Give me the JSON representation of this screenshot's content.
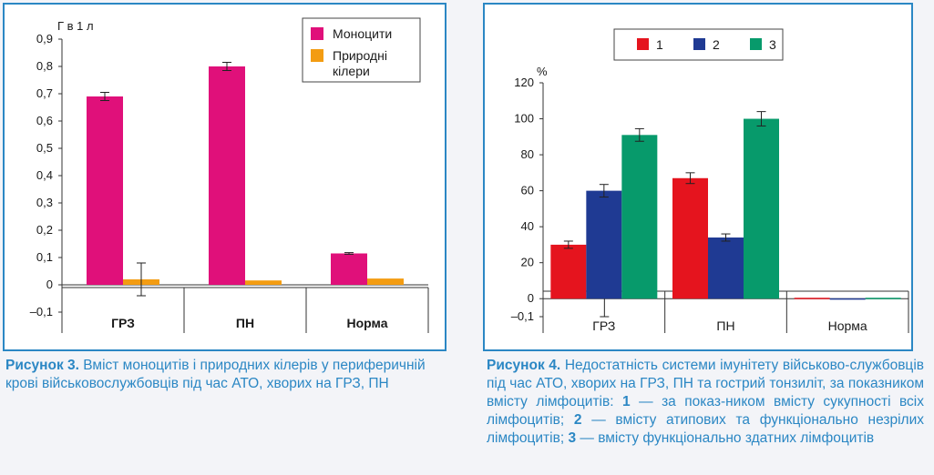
{
  "chart_data": [
    {
      "type": "bar",
      "ylabel": "Г в 1 л",
      "categories": [
        "ГРЗ",
        "ПН",
        "Норма"
      ],
      "series": [
        {
          "name": "Моноцити",
          "values": [
            0.69,
            0.8,
            0.115
          ],
          "errors": [
            0.015,
            0.015,
            0.003
          ]
        },
        {
          "name": "Природні кілери",
          "values": [
            0.02,
            0.016,
            0.023
          ],
          "errors": [
            0.06,
            0,
            0
          ]
        }
      ],
      "colors": [
        "#e0107a",
        "#f39c12"
      ],
      "ylim": [
        -0.1,
        0.9
      ],
      "yticks": [
        "0,9",
        "0,8",
        "0,7",
        "0,6",
        "0,5",
        "0,4",
        "0,3",
        "0,2",
        "0,1",
        "0",
        "–0,1"
      ],
      "legend": "top-right",
      "grid": false
    },
    {
      "type": "bar",
      "ylabel": "%",
      "categories": [
        "ГРЗ",
        "ПН",
        "Норма"
      ],
      "series": [
        {
          "name": "1",
          "values": [
            30,
            67,
            0.5
          ],
          "errors": [
            2,
            3,
            0
          ]
        },
        {
          "name": "2",
          "values": [
            60,
            34,
            0.2
          ],
          "errors": [
            3.5,
            2,
            0
          ]
        },
        {
          "name": "3",
          "values": [
            91,
            100,
            0.5
          ],
          "errors": [
            3.5,
            4,
            0
          ]
        }
      ],
      "extra_error": {
        "series": 1,
        "category": 0,
        "low": -10
      },
      "colors": [
        "#e5141e",
        "#1f3a93",
        "#079a6b"
      ],
      "ylim": [
        -10,
        120
      ],
      "yticks": [
        "120",
        "100",
        "80",
        "60",
        "40",
        "20",
        "0",
        "–0,1"
      ],
      "legend": "top",
      "grid": false
    }
  ],
  "captions": {
    "fig3_label": "Рисунок 3.",
    "fig3_text": "Вміст моноцитів і природних кілерів у периферичній крові військовослужбовців під час АТО, хворих на ГРЗ, ПН",
    "fig4_label": "Рисунок 4.",
    "fig4_text_1": "Недостатність системи імунітету військово-службовців під час АТО, хворих на ГРЗ, ПН та гострий тонзиліт, за показником вмісту лімфоцитів:",
    "fig4_num1": "1",
    "fig4_text_2": "— за показ-ником вмісту сукупності всіх лімфоцитів;",
    "fig4_num2": "2",
    "fig4_text_3": "— вмісту атипових та функціонально незрілих лімфоцитів;",
    "fig4_num3": "3",
    "fig4_text_4": "— вмісту функціонально здатних лімфоцитів"
  }
}
